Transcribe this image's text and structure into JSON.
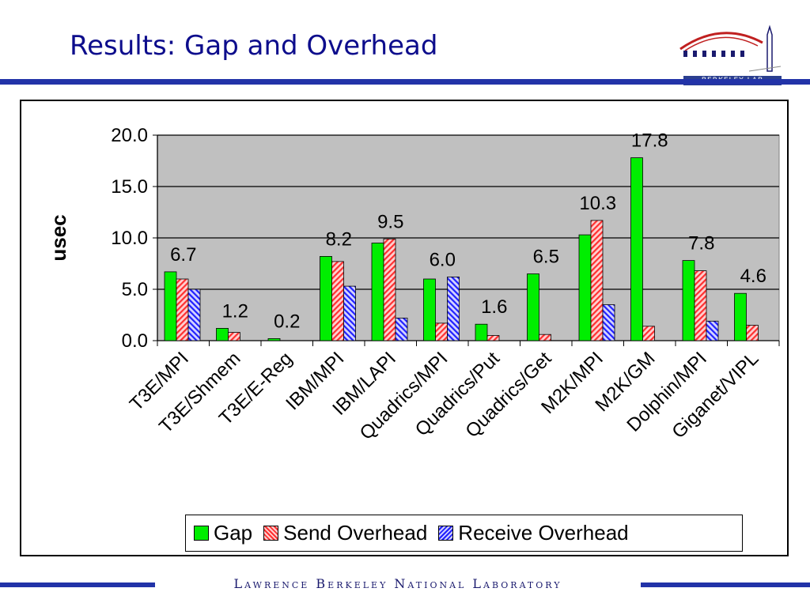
{
  "slide": {
    "title": "Results: Gap and Overhead",
    "logo_text": "Berkeley Lab",
    "footer": "Lawrence Berkeley National Laboratory"
  },
  "colors": {
    "gap": "#00ee00",
    "send": "#ff3030",
    "receive": "#2020ff",
    "plot_bg": "#c0c0c0",
    "title": "#0d0d8c",
    "rule": "#2233a8"
  },
  "chart_data": {
    "type": "bar",
    "ylabel": "usec",
    "xlabel": "",
    "ylim": [
      0,
      20
    ],
    "yticks": [
      "0.0",
      "5.0",
      "10.0",
      "15.0",
      "20.0"
    ],
    "grid": true,
    "legend_position": "bottom",
    "categories": [
      "T3E/MPI",
      "T3E/Shmem",
      "T3E/E-Reg",
      "IBM/MPI",
      "IBM/LAPI",
      "Quadrics/MPI",
      "Quadrics/Put",
      "Quadrics/Get",
      "M2K/MPI",
      "M2K/GM",
      "Dolphin/MPI",
      "Giganet/VIPL"
    ],
    "series": [
      {
        "name": "Gap",
        "values": [
          6.7,
          1.2,
          0.2,
          8.2,
          9.5,
          6.0,
          1.6,
          6.5,
          10.3,
          17.8,
          7.8,
          4.6
        ]
      },
      {
        "name": "Send Overhead",
        "values": [
          6.0,
          0.8,
          0,
          7.7,
          9.9,
          1.7,
          0.5,
          0.6,
          11.7,
          1.4,
          6.8,
          1.5
        ]
      },
      {
        "name": "Receive Overhead",
        "values": [
          5.0,
          0,
          0,
          5.3,
          2.2,
          6.2,
          0,
          0,
          3.5,
          0,
          1.9,
          0
        ]
      }
    ],
    "data_labels": [
      "6.7",
      "1.2",
      "0.2",
      "8.2",
      "9.5",
      "6.0",
      "1.6",
      "6.5",
      "10.3",
      "17.8",
      "7.8",
      "4.6"
    ]
  }
}
